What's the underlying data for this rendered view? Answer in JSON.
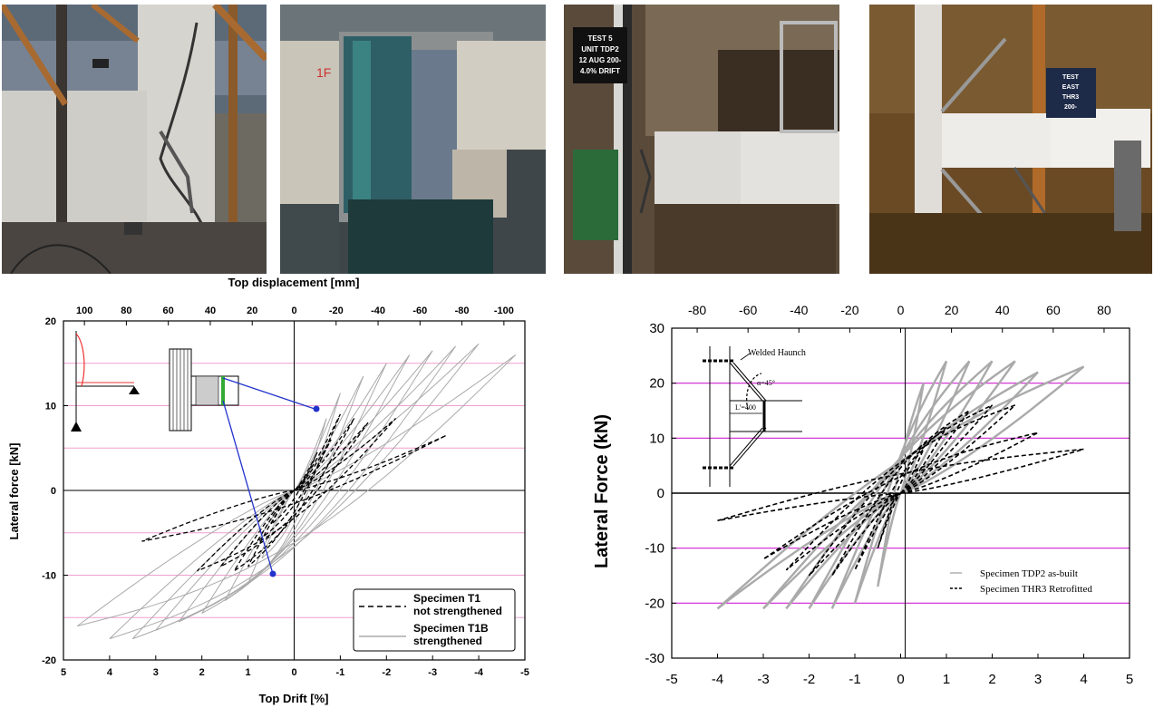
{
  "photos": [
    {
      "name": "photo-1",
      "caption": "",
      "sign_text": ""
    },
    {
      "name": "photo-2",
      "caption": "",
      "sign_text": "1F"
    },
    {
      "name": "photo-3",
      "caption": "",
      "sign_lines": [
        "TEST 5",
        "UNIT TDP2",
        "12 AUG 200-",
        "4.0% DRIFT"
      ]
    },
    {
      "name": "photo-4",
      "caption": "",
      "sign_lines": [
        "TEST",
        "EAST",
        "THR3",
        "200-"
      ]
    }
  ],
  "chart_data": [
    {
      "type": "line",
      "title": "",
      "xlabel": "Top Drift [%]",
      "x2label": "Top displacement [mm]",
      "ylabel": "Lateral force [kN]",
      "xlim": [
        5,
        -5
      ],
      "x2lim": [
        110,
        -110
      ],
      "ylim": [
        -20,
        20
      ],
      "x_ticks": [
        5,
        4,
        3,
        2,
        1,
        0,
        -1,
        -2,
        -3,
        -4,
        -5
      ],
      "x2_ticks": [
        100,
        80,
        60,
        40,
        20,
        0,
        -20,
        -40,
        -60,
        -80,
        -100
      ],
      "y_ticks": [
        20,
        10,
        0,
        -10,
        -20
      ],
      "gridlines_y": [
        15,
        10,
        5,
        -5,
        -10,
        -15
      ],
      "legend_position": "bottom-right",
      "series": [
        {
          "name": "Specimen T1\nnot strengthened",
          "label_lines": [
            "Specimen T1",
            "not strengthened"
          ],
          "style": "dashed",
          "color": "#000000",
          "peaks_x": [
            0.5,
            -0.5,
            0.8,
            -0.8,
            1.0,
            -1.0,
            1.3,
            -1.3,
            1.6,
            -1.6,
            2.1,
            -2.2,
            3.3,
            -3.3
          ],
          "peaks_y": [
            -4.0,
            4.5,
            -6.0,
            6.0,
            -9.0,
            9.0,
            -9.5,
            8.5,
            -9.0,
            8.0,
            -9.5,
            8.5,
            -6.0,
            6.5
          ]
        },
        {
          "name": "Specimen T1B\nstrengthened",
          "label_lines": [
            "Specimen T1B",
            "strengthened"
          ],
          "style": "solid",
          "color": "#aaaaaa",
          "peaks_x": [
            0.7,
            -0.7,
            1.0,
            -1.0,
            1.5,
            -1.5,
            2.0,
            -2.0,
            2.5,
            -2.5,
            3.0,
            -3.0,
            3.5,
            -3.5,
            4.0,
            -4.0,
            4.7,
            -4.8
          ],
          "peaks_y": [
            -8.0,
            8.5,
            -11.0,
            11.5,
            -13.0,
            13.5,
            -14.5,
            15.0,
            -15.5,
            16.0,
            -16.5,
            16.5,
            -17.5,
            17.0,
            -17.5,
            17.3,
            -16.0,
            16.0
          ]
        }
      ],
      "annotation_points": [
        {
          "x": -0.45,
          "y": 9.7
        },
        {
          "x": 0.5,
          "y": -9.8
        }
      ]
    },
    {
      "type": "line",
      "title": "",
      "xlabel": "",
      "x2label": "",
      "ylabel": "Lateral Force (kN)",
      "xlim": [
        -5,
        5
      ],
      "x2lim": [
        -90,
        90
      ],
      "ylim": [
        -30,
        30
      ],
      "x_ticks": [
        -5,
        -4,
        -3,
        -2,
        -1,
        0,
        1,
        2,
        3,
        4,
        5
      ],
      "x2_ticks": [
        -80,
        -60,
        -40,
        -20,
        0,
        20,
        40,
        60,
        80
      ],
      "y_ticks": [
        30,
        20,
        10,
        0,
        -10,
        -20,
        -30
      ],
      "gridlines_y": [
        20,
        10,
        0,
        -10,
        -20
      ],
      "legend_position": "bottom-right",
      "series": [
        {
          "name": "Specimen TDP2 as-built",
          "style": "solid",
          "color": "#aaaaaa",
          "peaks_x": [
            0.5,
            -0.5,
            1.0,
            -1.0,
            1.5,
            -1.5,
            2.0,
            -2.0,
            2.5,
            -2.5,
            3.0,
            -3.0,
            4.0,
            -4.0
          ],
          "peaks_y": [
            20,
            -17,
            24,
            -20,
            24,
            -21,
            24,
            -21,
            24,
            -21,
            22,
            -21,
            23,
            -21
          ]
        },
        {
          "name": "Specimen THR3 Retrofitted",
          "style": "dashed",
          "color": "#000000",
          "peaks_x": [
            0.5,
            -0.5,
            1.0,
            -1.0,
            1.5,
            -1.5,
            2.0,
            -2.0,
            2.5,
            -2.5,
            3.0,
            -3.0,
            4.0,
            -4.0
          ],
          "peaks_y": [
            8,
            -10,
            12,
            -14,
            15,
            -15,
            16,
            -15,
            16,
            -14,
            11,
            -12,
            8,
            -5
          ]
        }
      ],
      "inset_labels": [
        "Welded Haunch",
        "α=45°",
        "L'=400"
      ]
    }
  ]
}
